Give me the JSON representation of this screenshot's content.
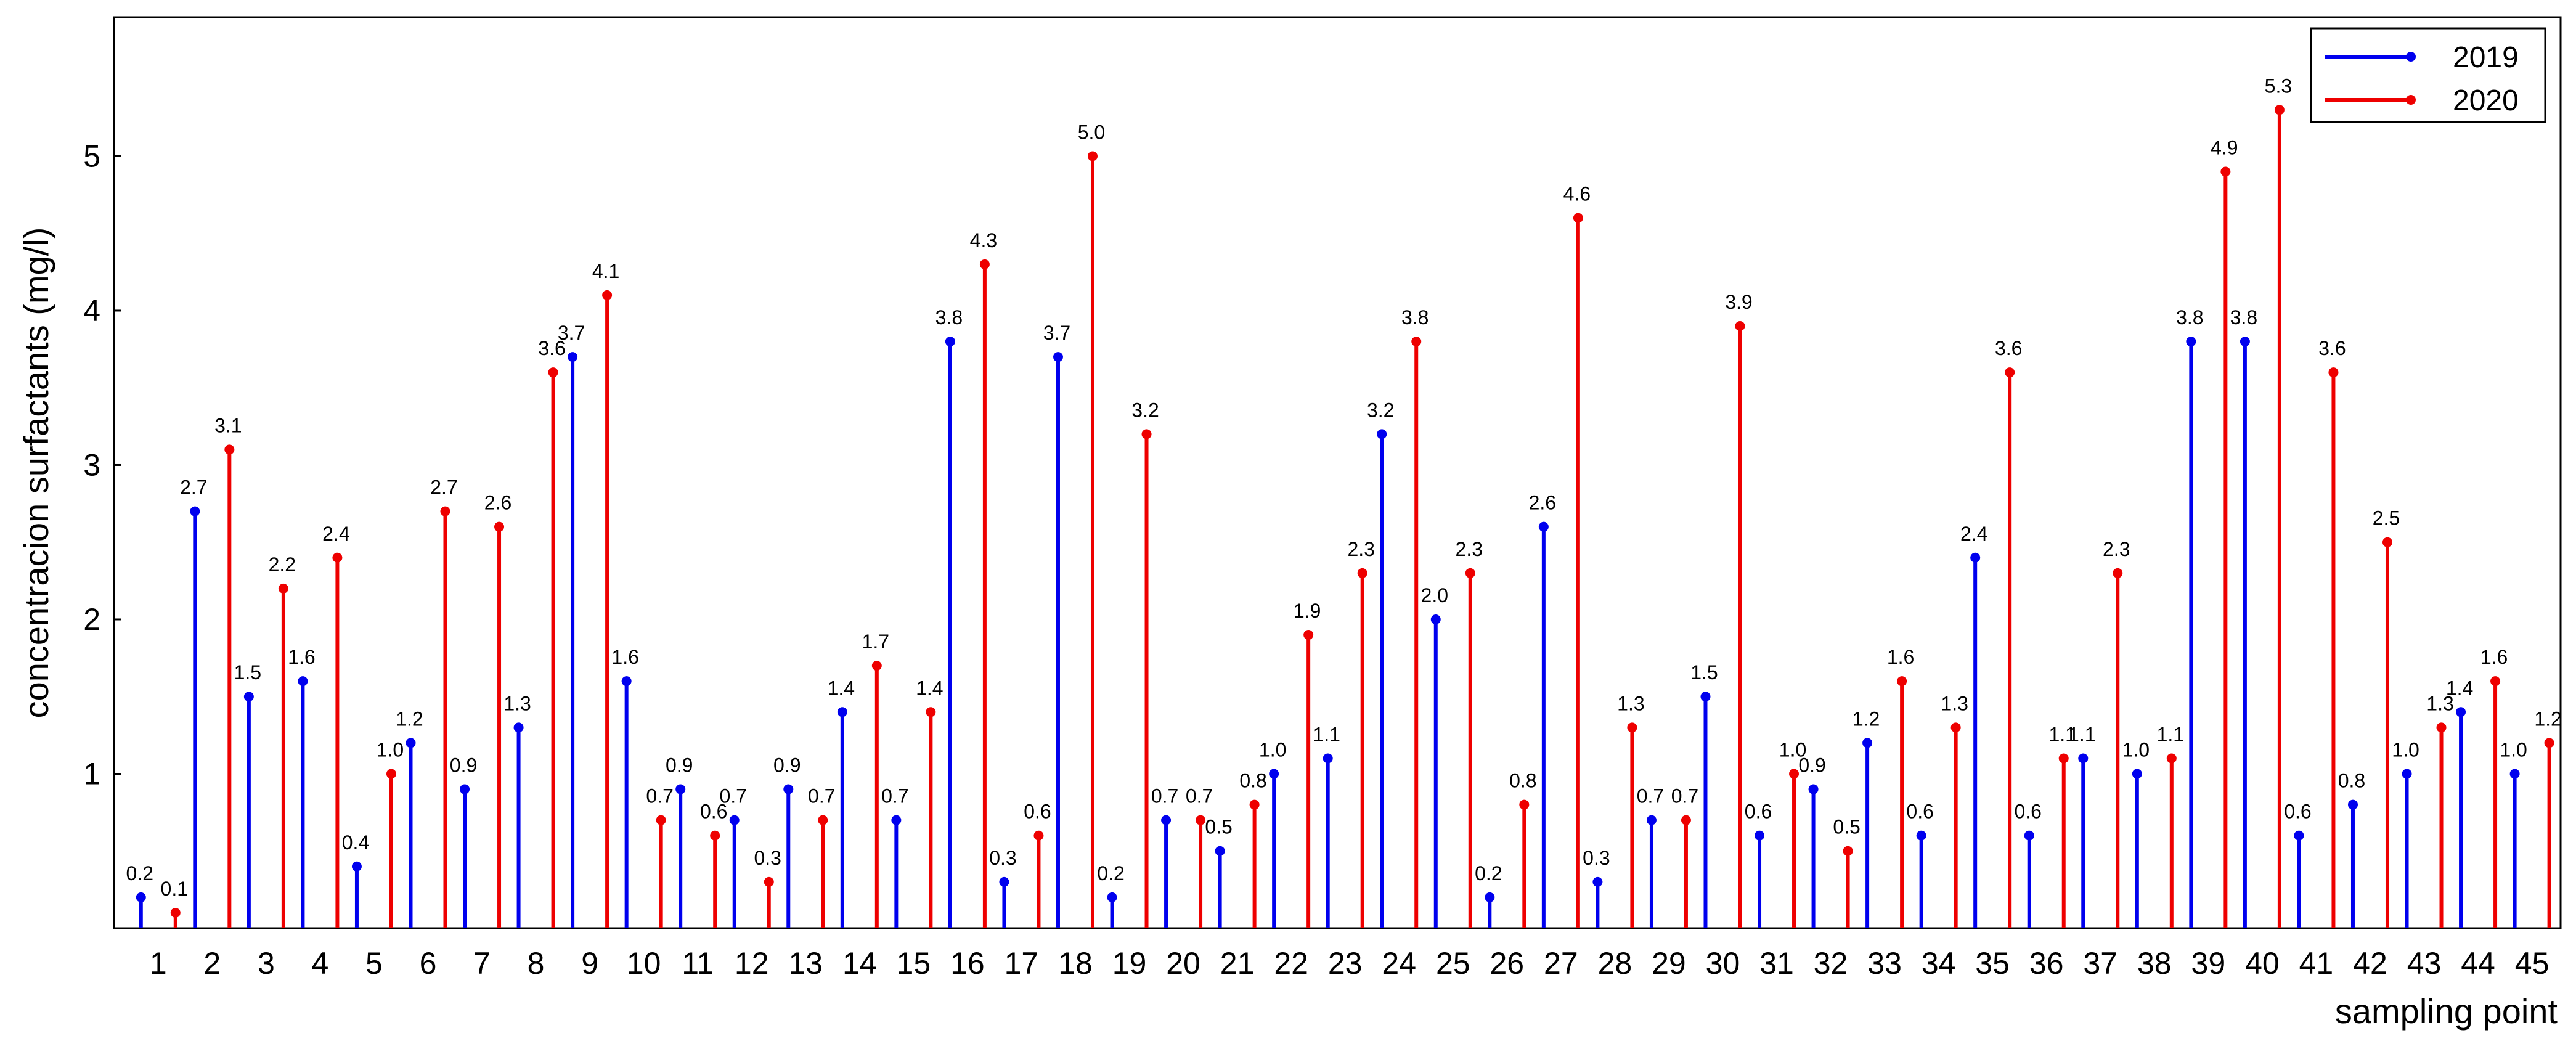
{
  "chart_data": {
    "type": "stem",
    "x": [
      1,
      2,
      3,
      4,
      5,
      6,
      7,
      8,
      9,
      10,
      11,
      12,
      13,
      14,
      15,
      16,
      17,
      18,
      19,
      20,
      21,
      22,
      23,
      24,
      25,
      26,
      27,
      28,
      29,
      30,
      31,
      32,
      33,
      34,
      35,
      36,
      37,
      38,
      39,
      40,
      41,
      42,
      43,
      44,
      45
    ],
    "series": [
      {
        "name": "2019",
        "color": "#0000ee",
        "values": [
          0.2,
          2.7,
          1.5,
          1.6,
          0.4,
          1.2,
          0.9,
          1.3,
          3.7,
          1.6,
          0.9,
          0.7,
          0.9,
          1.4,
          0.7,
          3.8,
          0.3,
          3.7,
          0.2,
          0.7,
          0.5,
          1.0,
          1.1,
          3.2,
          2.0,
          0.2,
          2.6,
          0.3,
          0.7,
          1.5,
          0.6,
          0.9,
          1.2,
          0.6,
          2.4,
          0.6,
          1.1,
          1.0,
          3.8,
          3.8,
          0.6,
          0.8,
          1.0,
          1.4,
          1.0
        ],
        "labels": [
          "0.2",
          "2.7",
          "1.5",
          "1.6",
          "0.4",
          "1.2",
          "0.9",
          "1.3",
          "3.7",
          "1.6",
          "0.9",
          "0.7",
          "0.9",
          "1.4",
          "0.7",
          "3.8",
          "0.3",
          "3.7",
          "0.2",
          "0.7",
          "0.5",
          "1.0",
          "1.1",
          "3.2",
          "2.0",
          "0.2",
          "2.6",
          "0.3",
          "0.7",
          "1.5",
          "0.6",
          "0.9",
          "1.2",
          "0.6",
          "2.4",
          "0.6",
          "1.1",
          "1.0",
          "3.8",
          "3.8",
          "0.6",
          "0.8",
          "1.0",
          "1.4",
          "1.0"
        ]
      },
      {
        "name": "2020",
        "color": "#ee0000",
        "values": [
          0.1,
          3.1,
          2.2,
          2.4,
          1.0,
          2.7,
          2.6,
          3.6,
          4.1,
          0.7,
          0.6,
          0.3,
          0.7,
          1.7,
          1.4,
          4.3,
          0.6,
          5.0,
          3.2,
          0.7,
          0.8,
          1.9,
          2.3,
          3.8,
          2.3,
          0.8,
          4.6,
          1.3,
          0.7,
          3.9,
          1.0,
          0.5,
          1.6,
          1.3,
          3.6,
          1.1,
          2.3,
          1.1,
          4.9,
          5.3,
          3.6,
          2.5,
          1.3,
          1.6,
          1.2
        ],
        "labels": [
          "0.1",
          "3.1",
          "2.2",
          "2.4",
          "1.0",
          "2.7",
          "2.6",
          "3.6",
          "4.1",
          "0.7",
          "0.6",
          "0.3",
          "0.7",
          "1.7",
          "1.4",
          "4.3",
          "0.6",
          "5.0",
          "3.2",
          "0.7",
          "0.8",
          "1.9",
          "2.3",
          "3.8",
          "2.3",
          "0.8",
          "4.6",
          "1.3",
          "0.7",
          "3.9",
          "1.0",
          "0.5",
          "1.6",
          "1.3",
          "3.6",
          "1.1",
          "2.3",
          "1.1",
          "4.9",
          "5.3",
          "3.6",
          "2.5",
          "1.3",
          "1.6",
          "1.2"
        ]
      }
    ],
    "xlabel": "sampling point",
    "ylabel": "concentracion surfactants (mg/l)",
    "ylim": [
      0,
      5.9
    ],
    "yticks": [
      1,
      2,
      3,
      4,
      5
    ],
    "grid": false,
    "legend": "top-right"
  }
}
